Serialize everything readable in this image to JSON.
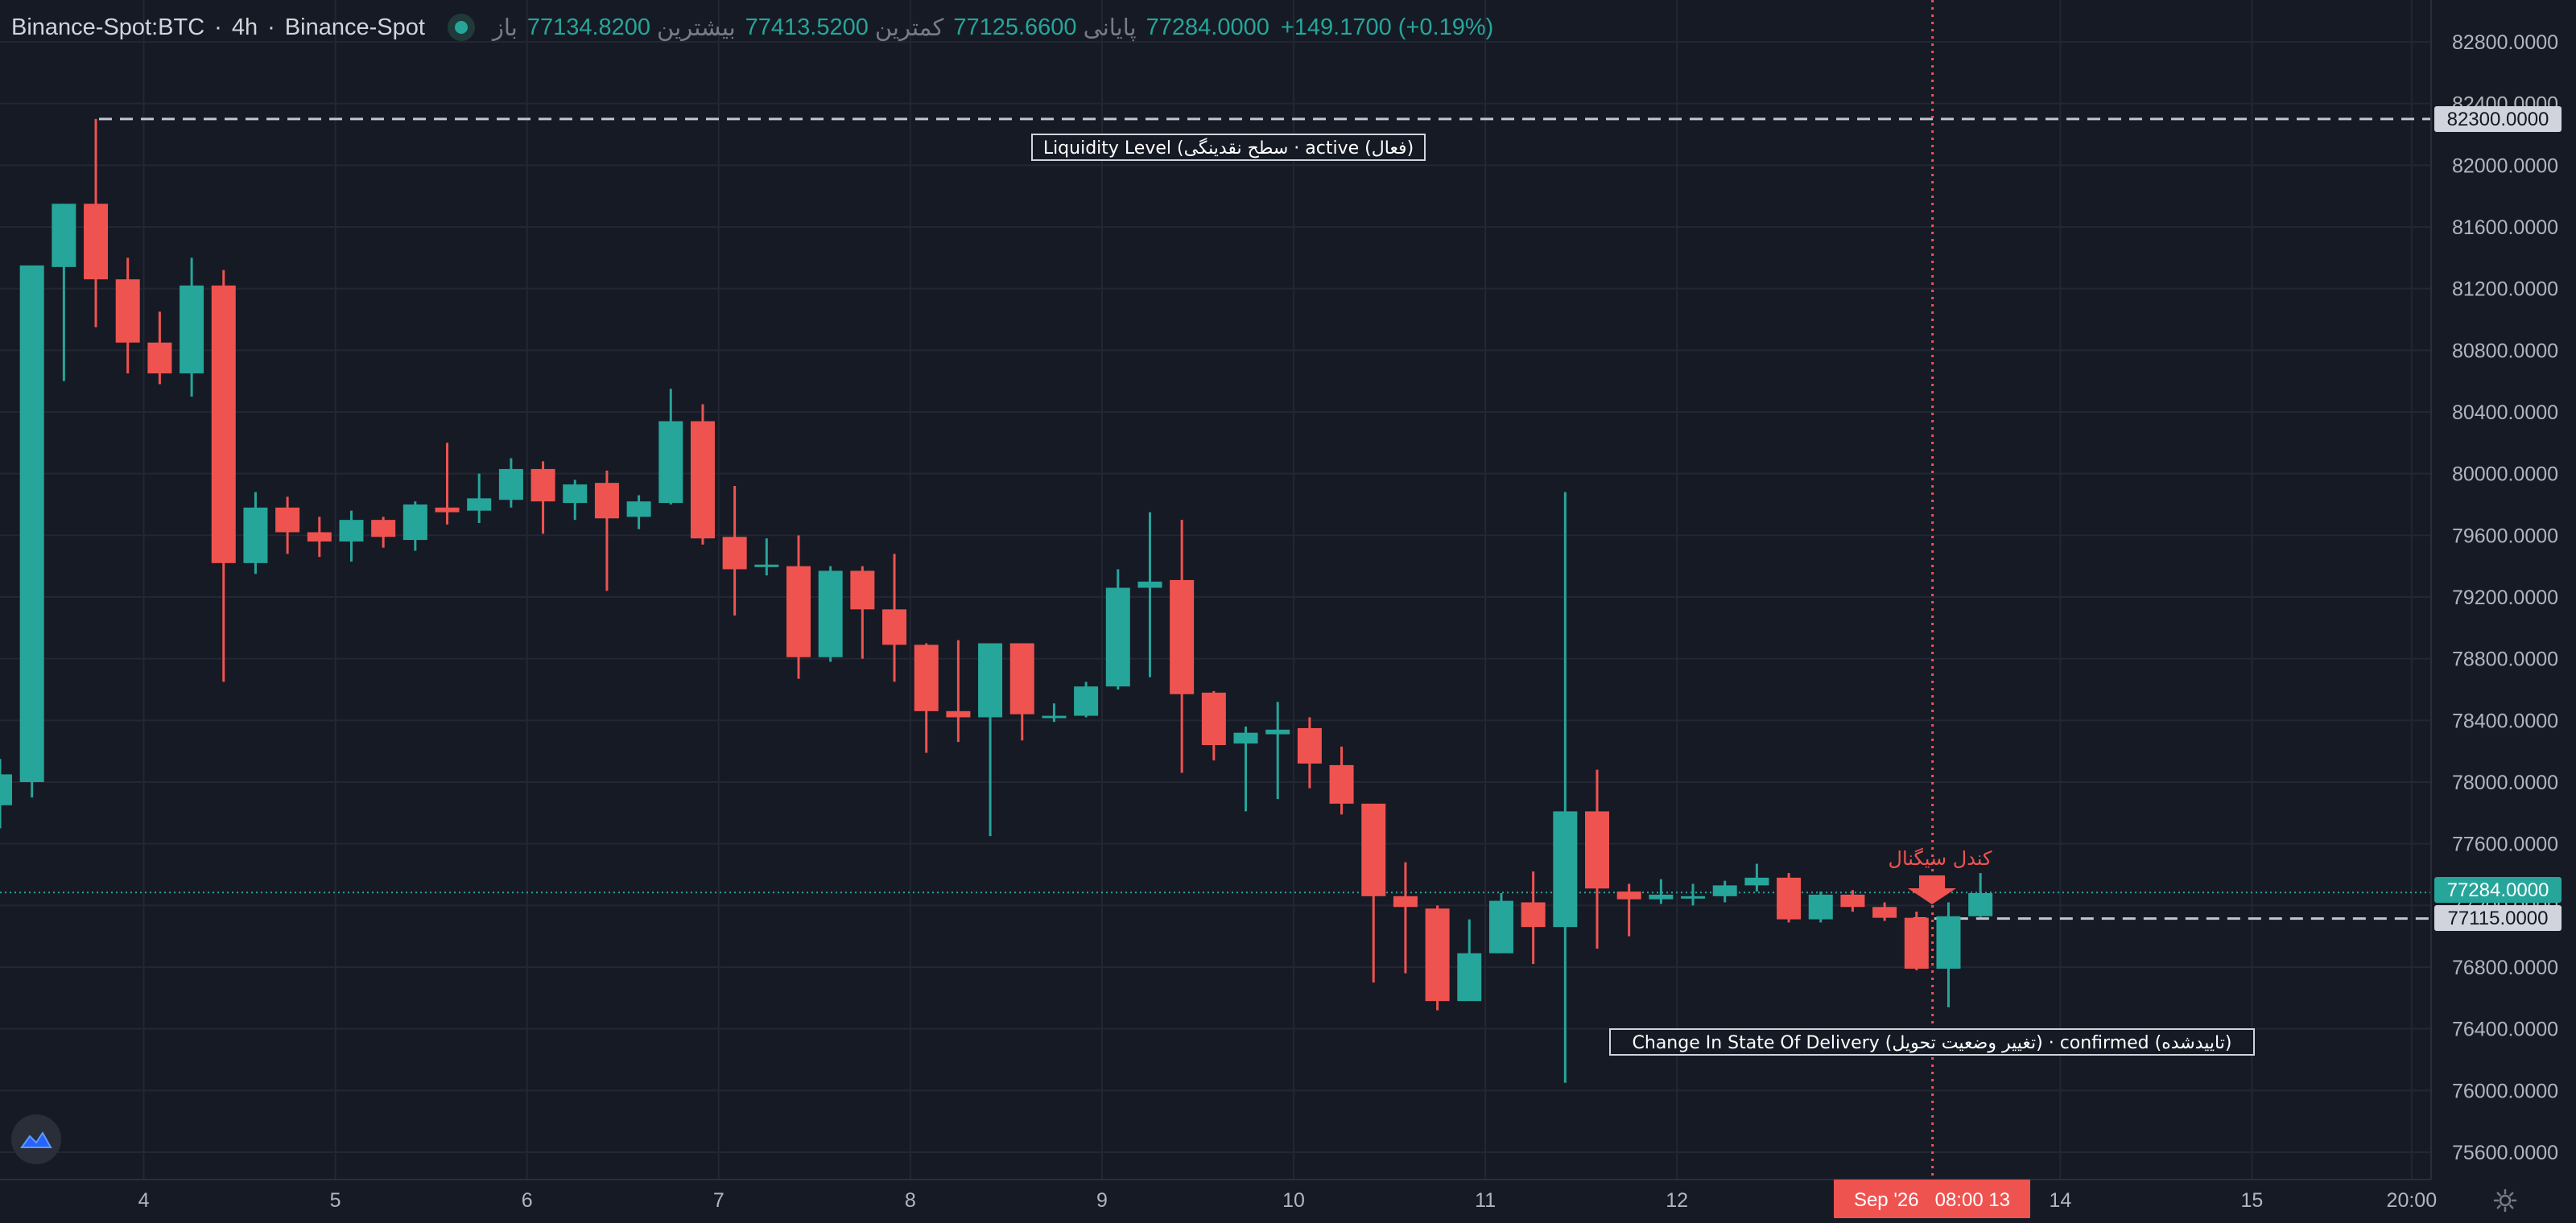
{
  "header": {
    "symbol": "Binance-Spot:BTC",
    "interval": "4h",
    "exchange": "Binance-Spot",
    "open_label": "باز",
    "open": "77134.8200",
    "high_label": "بیشترین",
    "high": "77413.5200",
    "low_label": "کمترین",
    "low": "77125.6600",
    "close_label": "پایانی",
    "close": "77284.0000",
    "change": "+149.1700 (+0.19%)"
  },
  "annotations": {
    "liquidity": "Liquidity Level (سطح نقدینگی · active (فعال)",
    "choch": "Change In State Of Delivery (تغییر وضعیت تحویل) · confirmed (تاییدشده)",
    "signal": "کندل سیگنال"
  },
  "price_labels": {
    "liquidity": "82300.0000",
    "last": "77284.0000",
    "choch": "77115.0000"
  },
  "crosshair_label": "Sep '26   08:00 13",
  "colors": {
    "background": "#161a25",
    "grid": "#232733",
    "up": "#26a69a",
    "down": "#ef5350",
    "text": "#b2b5be",
    "dashed_line": "#c3c6ce",
    "signal": "#ef5350"
  },
  "chart_data": {
    "type": "candlestick",
    "ylim": [
      75400,
      82900
    ],
    "y_ticks": [
      75600,
      76000,
      76400,
      76800,
      77200,
      77600,
      78000,
      78400,
      78800,
      79200,
      79600,
      80000,
      80400,
      80800,
      81200,
      81600,
      82000,
      82400,
      82800
    ],
    "y_tick_labels": [
      "75600.0000",
      "76000.0000",
      "76400.0000",
      "76800.0000",
      "77200.0000",
      "77600.0000",
      "78000.0000",
      "78400.0000",
      "78800.0000",
      "79200.0000",
      "79600.0000",
      "80000.0000",
      "80400.0000",
      "80800.0000",
      "81200.0000",
      "81600.0000",
      "82000.0000",
      "82400.0000",
      "82800.0000"
    ],
    "x_ticks": [
      {
        "label": "4",
        "bar": 4.5
      },
      {
        "label": "5",
        "bar": 10.5
      },
      {
        "label": "6",
        "bar": 16.5
      },
      {
        "label": "7",
        "bar": 22.5
      },
      {
        "label": "8",
        "bar": 28.5
      },
      {
        "label": "9",
        "bar": 34.5
      },
      {
        "label": "10",
        "bar": 40.5
      },
      {
        "label": "11",
        "bar": 46.5
      },
      {
        "label": "12",
        "bar": 52.5
      },
      {
        "label": "14",
        "bar": 64.5
      },
      {
        "label": "15",
        "bar": 70.5
      },
      {
        "label": "20:00",
        "bar": 75.5
      }
    ],
    "candles": [
      [
        77850,
        78050,
        77700,
        78150
      ],
      [
        78000,
        81350,
        77900,
        81350
      ],
      [
        81340,
        81750,
        80600,
        81750
      ],
      [
        81750,
        81260,
        80950,
        82300
      ],
      [
        81260,
        80850,
        80650,
        81400
      ],
      [
        80850,
        80650,
        80580,
        81050
      ],
      [
        80650,
        81220,
        80500,
        81400
      ],
      [
        81220,
        79420,
        78650,
        81320
      ],
      [
        79420,
        79780,
        79350,
        79880
      ],
      [
        79780,
        79620,
        79480,
        79850
      ],
      [
        79620,
        79560,
        79460,
        79720
      ],
      [
        79560,
        79700,
        79430,
        79760
      ],
      [
        79700,
        79590,
        79520,
        79720
      ],
      [
        79570,
        79800,
        79500,
        79820
      ],
      [
        79780,
        79750,
        79670,
        80200
      ],
      [
        79760,
        79840,
        79680,
        80000
      ],
      [
        79830,
        80030,
        79780,
        80100
      ],
      [
        80030,
        79820,
        79610,
        80080
      ],
      [
        79810,
        79930,
        79700,
        79960
      ],
      [
        79940,
        79710,
        79240,
        80020
      ],
      [
        79720,
        79820,
        79640,
        79860
      ],
      [
        79810,
        80340,
        79800,
        80550
      ],
      [
        80340,
        79580,
        79540,
        80450
      ],
      [
        79590,
        79380,
        79080,
        79920
      ],
      [
        79410,
        79410,
        79340,
        79580
      ],
      [
        79400,
        78810,
        78670,
        79600
      ],
      [
        78810,
        79370,
        78780,
        79400
      ],
      [
        79370,
        79120,
        78800,
        79400
      ],
      [
        79120,
        78890,
        78650,
        79480
      ],
      [
        78890,
        78460,
        78190,
        78900
      ],
      [
        78460,
        78420,
        78260,
        78920
      ],
      [
        78420,
        78900,
        77650,
        78900
      ],
      [
        78900,
        78440,
        78270,
        78900
      ],
      [
        78420,
        78430,
        78390,
        78510
      ],
      [
        78430,
        78620,
        78420,
        78650
      ],
      [
        78620,
        79260,
        78600,
        79380
      ],
      [
        79260,
        79300,
        78680,
        79750
      ],
      [
        79310,
        78570,
        78060,
        79700
      ],
      [
        78580,
        78240,
        78140,
        78590
      ],
      [
        78250,
        78320,
        77810,
        78360
      ],
      [
        78310,
        78340,
        77890,
        78520
      ],
      [
        78350,
        78120,
        77960,
        78420
      ],
      [
        78110,
        77860,
        77790,
        78230
      ],
      [
        77860,
        77260,
        76700,
        77860
      ],
      [
        77260,
        77190,
        76760,
        77480
      ],
      [
        77180,
        76580,
        76520,
        77200
      ],
      [
        76580,
        76890,
        76620,
        77110
      ],
      [
        76890,
        77230,
        76890,
        77280
      ],
      [
        77220,
        77060,
        76820,
        77420
      ],
      [
        77060,
        77810,
        76050,
        79880
      ],
      [
        77810,
        77310,
        76920,
        78080
      ],
      [
        77290,
        77240,
        77000,
        77340
      ],
      [
        77240,
        77270,
        77210,
        77370
      ],
      [
        77260,
        77260,
        77200,
        77340
      ],
      [
        77260,
        77330,
        77220,
        77360
      ],
      [
        77330,
        77380,
        77290,
        77470
      ],
      [
        77380,
        77110,
        77090,
        77410
      ],
      [
        77110,
        77270,
        77090,
        77290
      ],
      [
        77270,
        77190,
        77160,
        77300
      ],
      [
        77190,
        77120,
        77100,
        77220
      ],
      [
        77120,
        76790,
        76780,
        77160
      ],
      [
        76790,
        77130,
        76540,
        77220
      ],
      [
        77130,
        77280,
        77125,
        77410
      ]
    ],
    "liquidity_level": 82300,
    "choch_level": 77115,
    "last_price": 77284
  }
}
